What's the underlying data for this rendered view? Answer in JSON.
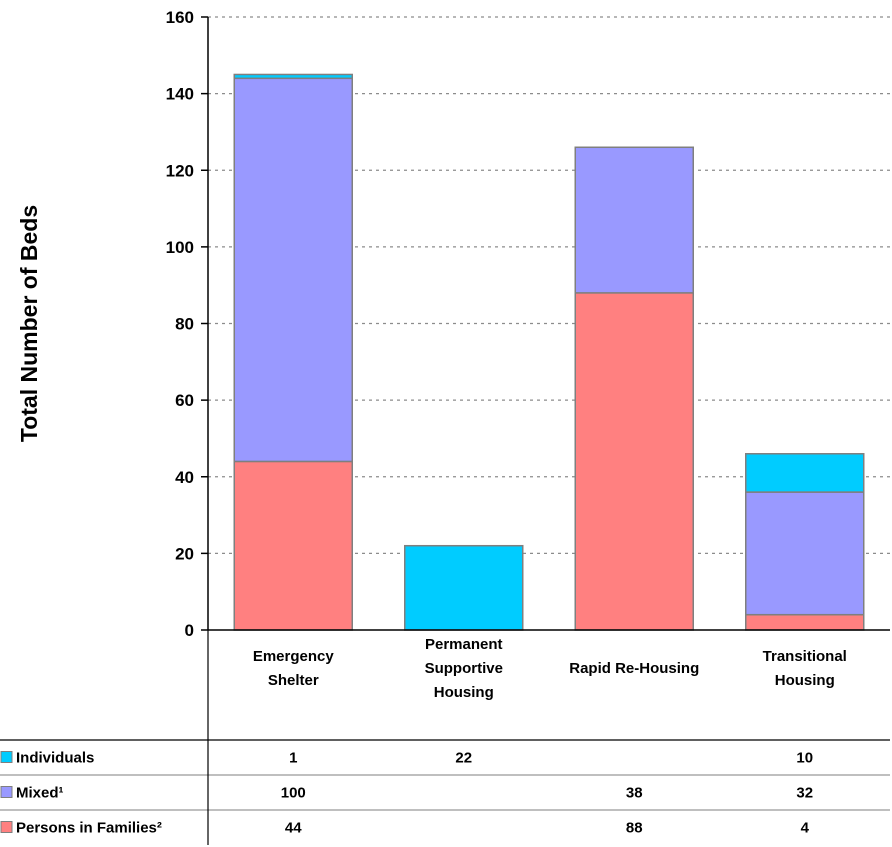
{
  "chart_data": {
    "type": "bar",
    "stacked": true,
    "categories": [
      [
        "Emergency",
        "Shelter"
      ],
      [
        "Permanent",
        "Supportive",
        "Housing"
      ],
      [
        "Rapid Re-Housing"
      ],
      [
        "Transitional",
        "Housing"
      ]
    ],
    "series": [
      {
        "name": "Persons in Families²",
        "color": "#ff8080",
        "values": [
          44,
          null,
          88,
          4
        ]
      },
      {
        "name": "Mixed¹",
        "color": "#9999ff",
        "values": [
          100,
          null,
          38,
          32
        ]
      },
      {
        "name": "Individuals",
        "color": "#00ccff",
        "values": [
          1,
          22,
          null,
          10
        ]
      }
    ],
    "table_order": [
      2,
      1,
      0
    ],
    "ylabel": "Total Number of Beds",
    "ylim": [
      0,
      160
    ],
    "yticks": [
      0,
      20,
      40,
      60,
      80,
      100,
      120,
      140,
      160
    ],
    "grid": "horizontal-dashed",
    "legend": "data-table-bottom"
  }
}
